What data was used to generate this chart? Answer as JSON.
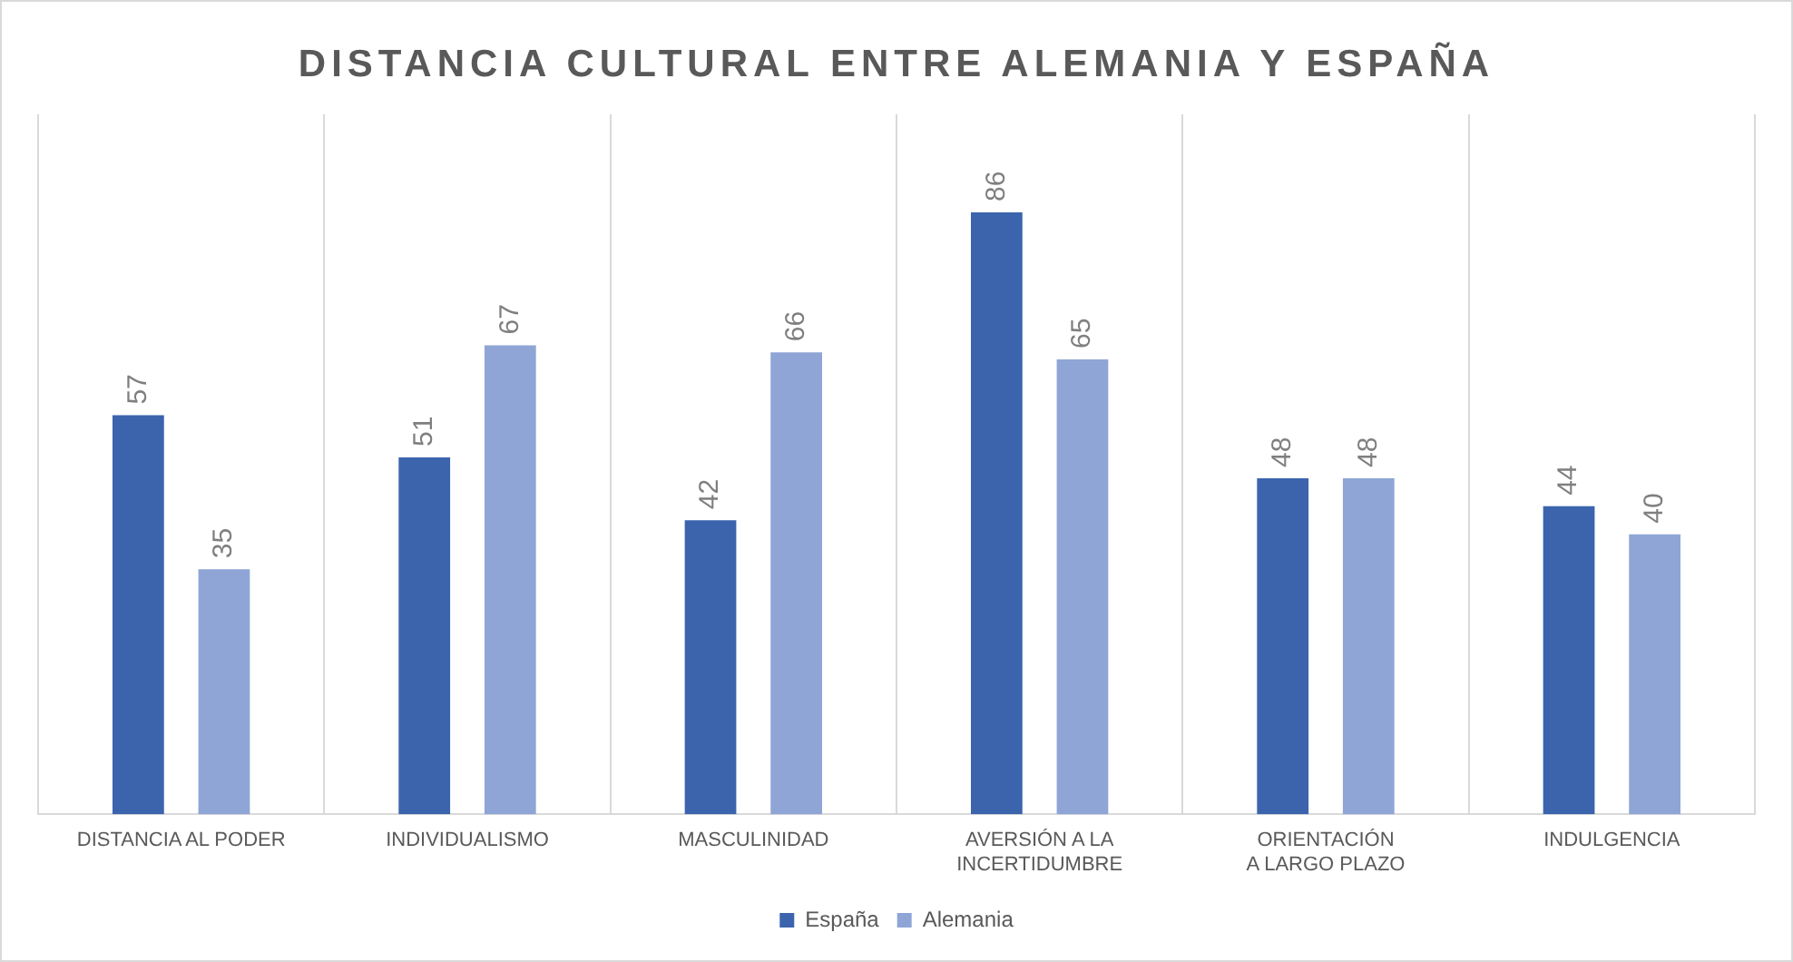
{
  "chart_data": {
    "type": "bar",
    "title": "DISTANCIA CULTURAL ENTRE ALEMANIA Y ESPAÑA",
    "categories": [
      "DISTANCIA AL PODER",
      "INDIVIDUALISMO",
      "MASCULINIDAD",
      "AVERSIÓN A LA INCERTIDUMBRE",
      "ORIENTACIÓN A LARGO PLAZO",
      "INDULGENCIA"
    ],
    "series": [
      {
        "name": "España",
        "color": "#3b64ad",
        "values": [
          57,
          51,
          42,
          86,
          48,
          44
        ]
      },
      {
        "name": "Alemania",
        "color": "#8fa5d6",
        "values": [
          35,
          67,
          66,
          65,
          48,
          40
        ]
      }
    ],
    "ylim": [
      0,
      100
    ],
    "data_labels": true,
    "grid": "x",
    "legend": "bottom",
    "tick_labels": "x"
  }
}
